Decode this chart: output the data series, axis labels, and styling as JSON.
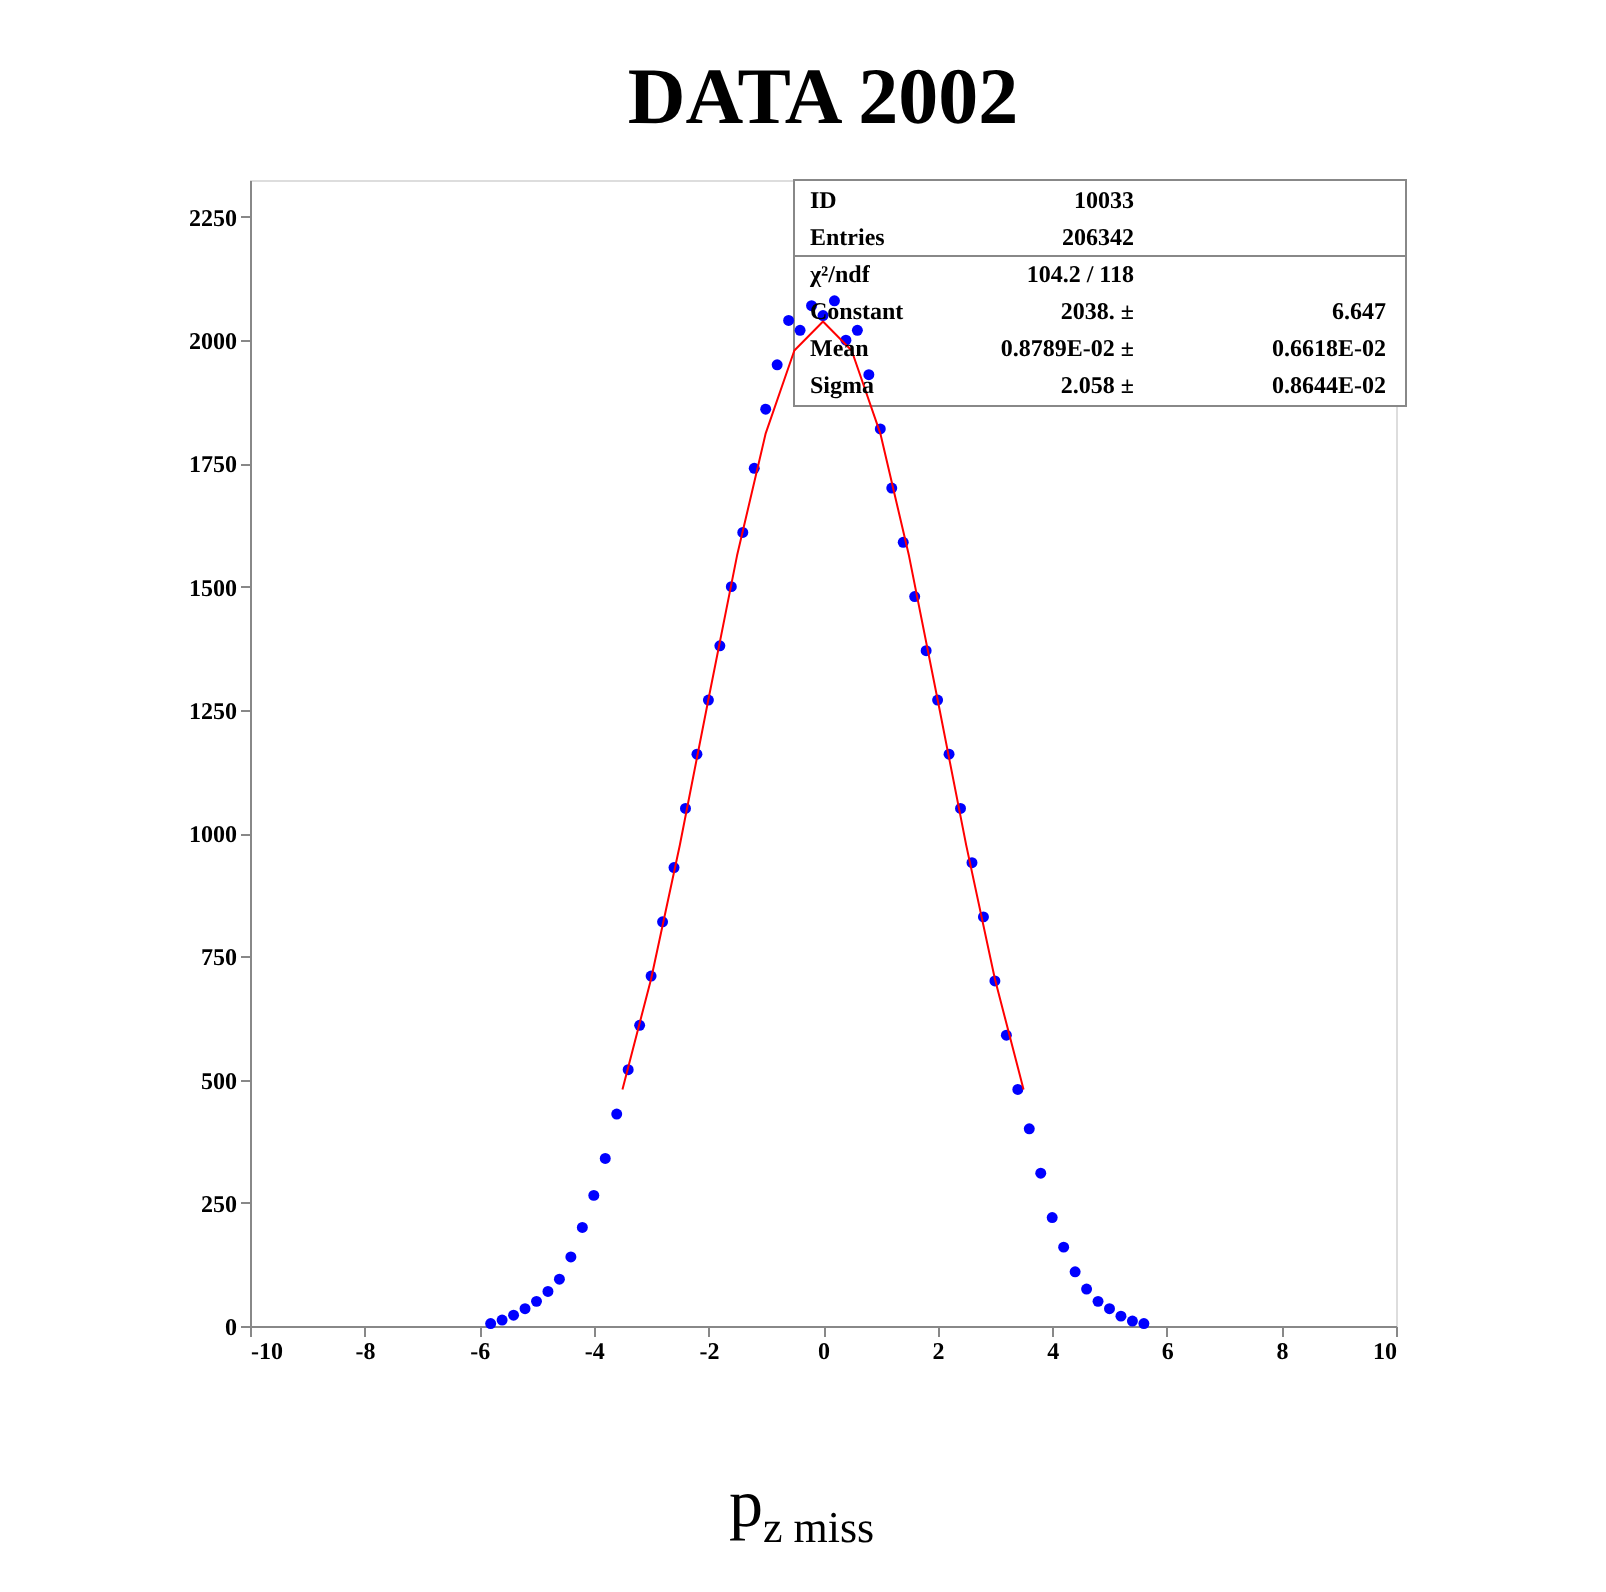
{
  "chart_data": {
    "type": "scatter",
    "title": "DATA 2002",
    "xlabel": "p$_{z miss}$",
    "xlim": [
      -10,
      10
    ],
    "xticks": [
      -10,
      -8,
      -6,
      -4,
      -2,
      0,
      2,
      4,
      6,
      8,
      10
    ],
    "ylim": [
      0,
      2325
    ],
    "yticks": [
      0,
      250,
      500,
      750,
      1000,
      1250,
      1500,
      1750,
      2000,
      2250
    ],
    "grid": false,
    "series": [
      {
        "marker": "circle",
        "color": "#0000ff",
        "x": [
          -5.8,
          -5.6,
          -5.4,
          -5.2,
          -5.0,
          -4.8,
          -4.6,
          -4.4,
          -4.2,
          -4.0,
          -3.8,
          -3.6,
          -3.4,
          -3.2,
          -3.0,
          -2.8,
          -2.6,
          -2.4,
          -2.2,
          -2.0,
          -1.8,
          -1.6,
          -1.4,
          -1.2,
          -1.0,
          -0.8,
          -0.6,
          -0.4,
          -0.2,
          0.0,
          0.2,
          0.4,
          0.6,
          0.8,
          1.0,
          1.2,
          1.4,
          1.6,
          1.8,
          2.0,
          2.2,
          2.4,
          2.6,
          2.8,
          3.0,
          3.2,
          3.4,
          3.6,
          3.8,
          4.0,
          4.2,
          4.4,
          4.6,
          4.8,
          5.0,
          5.2,
          5.4,
          5.6
        ],
        "values": [
          5,
          12,
          22,
          35,
          50,
          70,
          95,
          140,
          200,
          265,
          340,
          430,
          520,
          610,
          710,
          820,
          930,
          1050,
          1160,
          1270,
          1380,
          1500,
          1610,
          1740,
          1860,
          1950,
          2040,
          2020,
          2070,
          2050,
          2080,
          2000,
          2020,
          1930,
          1820,
          1700,
          1590,
          1480,
          1370,
          1270,
          1160,
          1050,
          940,
          830,
          700,
          590,
          480,
          400,
          310,
          220,
          160,
          110,
          75,
          50,
          35,
          20,
          10,
          5
        ]
      },
      {
        "type": "line",
        "color": "#ff0000",
        "line_style": "solid",
        "x": [
          -3.5,
          -3.0,
          -2.5,
          -2.0,
          -1.5,
          -1.0,
          -0.5,
          0.0,
          0.5,
          1.0,
          1.5,
          2.0,
          2.5,
          3.0,
          3.5
        ],
        "values": [
          480,
          704,
          975,
          1271,
          1563,
          1811,
          1979,
          2038,
          1979,
          1811,
          1563,
          1271,
          975,
          704,
          480
        ]
      }
    ],
    "annotations": [
      "ID",
      "10033",
      "Entries",
      "206342",
      "χ²/ndf",
      "104.2   /  118",
      "Constant",
      "2038. ±",
      "6.647",
      "Mean",
      "0.8789E-02 ±",
      "0.6618E-02",
      "Sigma",
      "2.058 ±",
      "0.8644E-02"
    ]
  }
}
